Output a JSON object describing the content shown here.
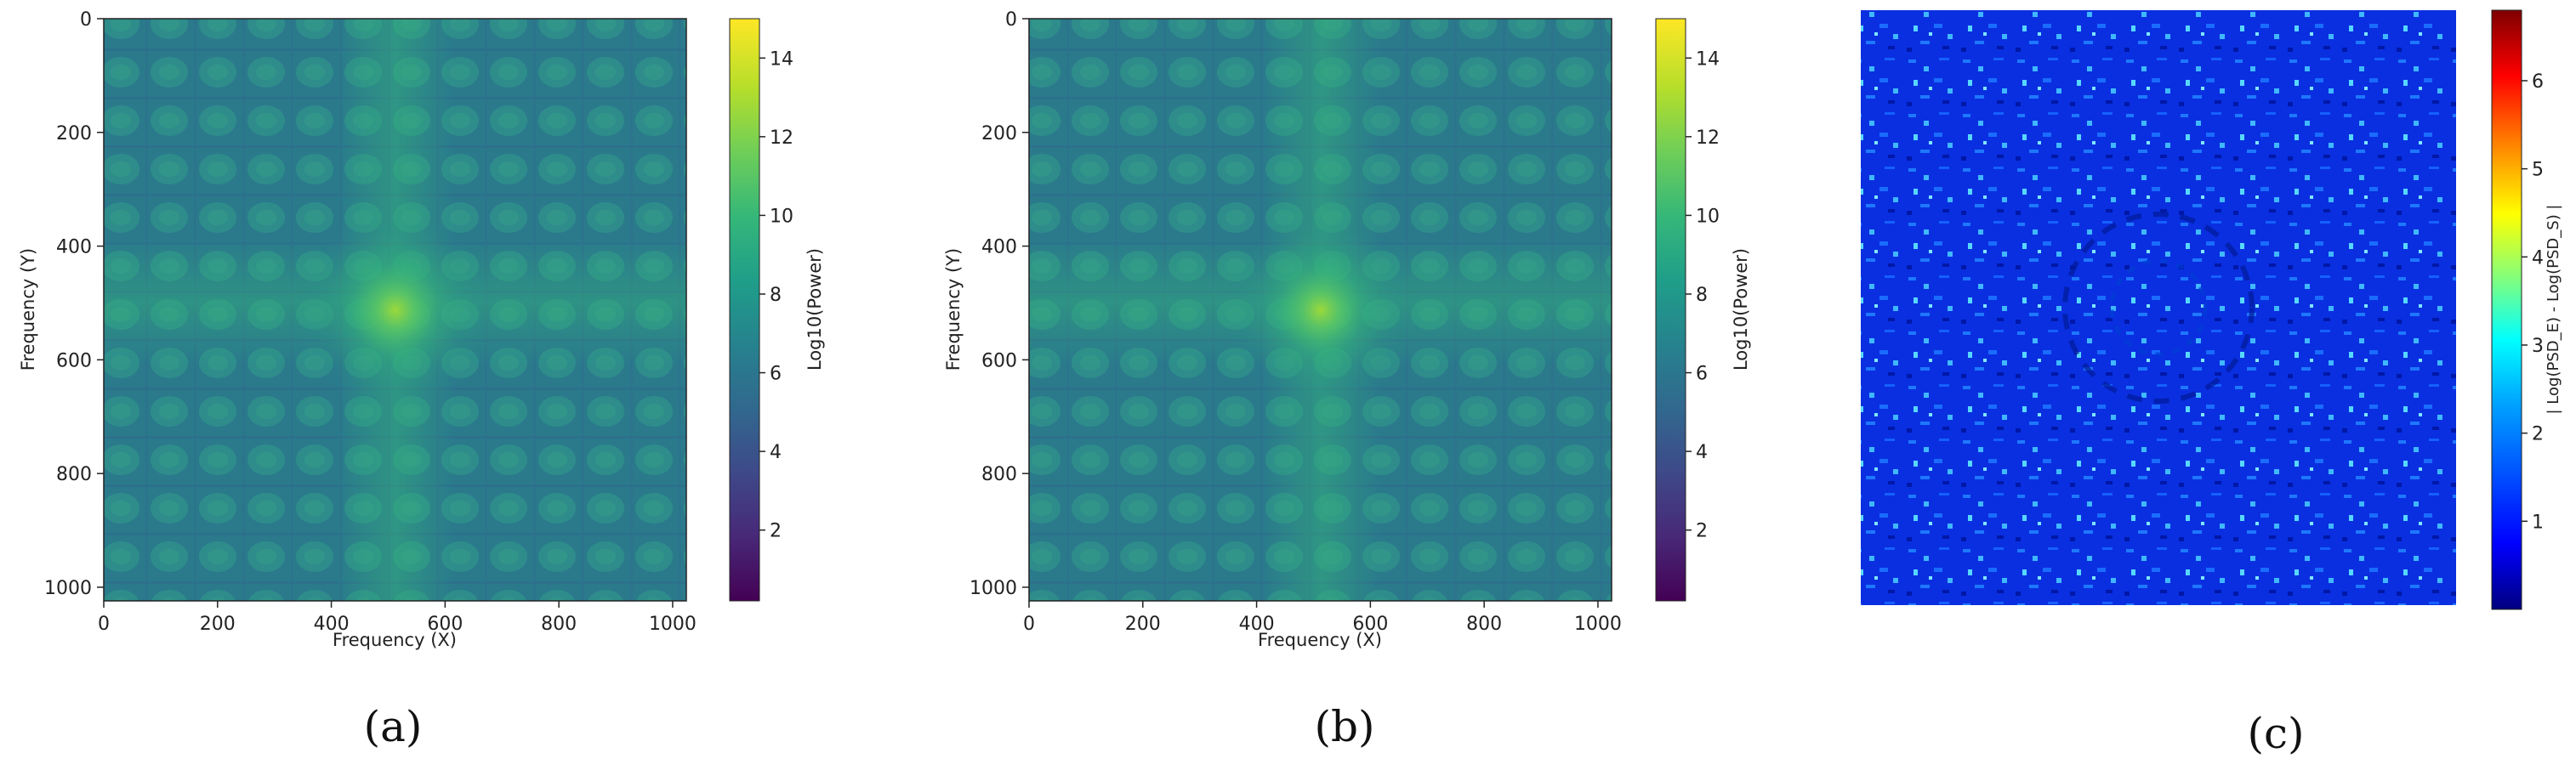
{
  "chart_data": [
    {
      "type": "heatmap",
      "panel": "a",
      "caption": "(a)",
      "xlabel": "Frequency (X)",
      "ylabel": "Frequency (Y)",
      "xlim": [
        0,
        1024
      ],
      "ylim": [
        1024,
        0
      ],
      "xticks": [
        0,
        200,
        400,
        600,
        800,
        1000
      ],
      "yticks": [
        0,
        200,
        400,
        600,
        800,
        1000
      ],
      "colormap": "viridis",
      "colorbar": {
        "label": "Log10(Power)",
        "range": [
          0.2,
          15
        ],
        "ticks": [
          2,
          4,
          6,
          8,
          10,
          12,
          14
        ]
      },
      "peak_center": [
        512,
        512
      ],
      "texture": "periodic lattice of blobs with bright cross at center"
    },
    {
      "type": "heatmap",
      "panel": "b",
      "caption": "(b)",
      "xlabel": "Frequency (X)",
      "ylabel": "Frequency (Y)",
      "xlim": [
        0,
        1024
      ],
      "ylim": [
        1024,
        0
      ],
      "xticks": [
        0,
        200,
        400,
        600,
        800,
        1000
      ],
      "yticks": [
        0,
        200,
        400,
        600,
        800,
        1000
      ],
      "colormap": "viridis",
      "colorbar": {
        "label": "Log10(Power)",
        "range": [
          0.2,
          15
        ],
        "ticks": [
          2,
          4,
          6,
          8,
          10,
          12,
          14
        ]
      },
      "peak_center": [
        512,
        512
      ],
      "texture": "periodic lattice of blobs with bright cross at center"
    },
    {
      "type": "heatmap",
      "panel": "c",
      "caption": "(c)",
      "axes_visible": false,
      "colormap": "jet",
      "colorbar": {
        "label": "| Log(PSD_E) - Log(PSD_S) |",
        "range": [
          0,
          6.8
        ],
        "ticks": [
          1,
          2,
          3,
          4,
          5,
          6
        ]
      },
      "texture": "mostly low values (0-2) with scattered higher speckles"
    }
  ],
  "colors": {
    "viridis": [
      "#440154",
      "#482878",
      "#3e4989",
      "#31688e",
      "#26828e",
      "#1f9e89",
      "#35b779",
      "#6ece58",
      "#b5de2b",
      "#fde725"
    ],
    "jet": [
      "#00007f",
      "#0000ff",
      "#007fff",
      "#00ffff",
      "#7fff7f",
      "#ffff00",
      "#ff7f00",
      "#ff0000",
      "#7f0000"
    ]
  }
}
